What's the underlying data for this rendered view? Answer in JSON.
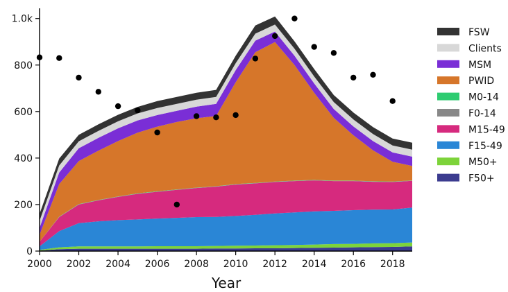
{
  "chart_data": {
    "type": "area",
    "stacked": true,
    "xlabel": "Year",
    "ylabel": "",
    "xlim": [
      2000,
      2019
    ],
    "ylim": [
      0,
      1020
    ],
    "x_ticks": [
      "2000",
      "2002",
      "2004",
      "2006",
      "2008",
      "2010",
      "2012",
      "2014",
      "2016",
      "2018"
    ],
    "y_ticks": [
      "0",
      "200",
      "400",
      "600",
      "800",
      "1.0k"
    ],
    "legend_position": "right",
    "x": [
      2000,
      2001,
      2002,
      2003,
      2004,
      2005,
      2006,
      2007,
      2008,
      2009,
      2010,
      2011,
      2012,
      2013,
      2014,
      2015,
      2016,
      2017,
      2018,
      2019
    ],
    "series": [
      {
        "name": "F50+",
        "color": "#3b3b8f",
        "values": [
          2,
          8,
          10,
          10,
          10,
          10,
          10,
          10,
          10,
          11,
          11,
          12,
          12,
          13,
          14,
          15,
          16,
          17,
          18,
          20
        ]
      },
      {
        "name": "M50+",
        "color": "#7dd33a",
        "values": [
          3,
          8,
          10,
          10,
          10,
          10,
          11,
          11,
          11,
          11,
          12,
          12,
          13,
          13,
          14,
          15,
          15,
          16,
          16,
          17
        ]
      },
      {
        "name": "F15-49",
        "color": "#2a86d6",
        "values": [
          15,
          70,
          100,
          108,
          113,
          116,
          119,
          122,
          125,
          125,
          128,
          132,
          137,
          140,
          143,
          143,
          145,
          145,
          145,
          150
        ]
      },
      {
        "name": "M15-49",
        "color": "#d62a7e",
        "values": [
          20,
          60,
          80,
          90,
          100,
          110,
          115,
          120,
          125,
          130,
          135,
          135,
          135,
          135,
          133,
          128,
          125,
          120,
          118,
          115
        ]
      },
      {
        "name": "F0-14",
        "color": "#888888",
        "values": [
          0,
          1,
          1,
          1,
          1,
          1,
          1,
          1,
          1,
          1,
          1,
          1,
          1,
          1,
          1,
          1,
          1,
          1,
          1,
          1
        ]
      },
      {
        "name": "M0-14",
        "color": "#2ecc71",
        "values": [
          0,
          1,
          1,
          1,
          1,
          1,
          1,
          1,
          1,
          1,
          1,
          1,
          1,
          1,
          1,
          1,
          1,
          1,
          1,
          1
        ]
      },
      {
        "name": "PWID",
        "color": "#d6762a",
        "values": [
          30,
          140,
          185,
          212,
          238,
          261,
          278,
          290,
          298,
          302,
          438,
          562,
          600,
          497,
          375,
          270,
          195,
          133,
          85,
          62
        ]
      },
      {
        "name": "MSM",
        "color": "#7a2ed6",
        "values": [
          30,
          50,
          55,
          55,
          55,
          53,
          50,
          48,
          50,
          52,
          52,
          50,
          45,
          40,
          40,
          38,
          38,
          40,
          40,
          40
        ]
      },
      {
        "name": "Clients",
        "color": "#d8d8d8",
        "values": [
          30,
          30,
          30,
          30,
          30,
          30,
          30,
          30,
          30,
          30,
          30,
          30,
          30,
          30,
          30,
          30,
          30,
          30,
          30,
          30
        ]
      },
      {
        "name": "FSW",
        "color": "#333333",
        "values": [
          30,
          30,
          28,
          28,
          28,
          28,
          30,
          30,
          30,
          30,
          32,
          35,
          35,
          32,
          32,
          30,
          30,
          30,
          30,
          30
        ]
      }
    ],
    "scatter_points": [
      [
        2000,
        833
      ],
      [
        2001,
        830
      ],
      [
        2002,
        746
      ],
      [
        2003,
        685
      ],
      [
        2004,
        623
      ],
      [
        2005,
        605
      ],
      [
        2006,
        510
      ],
      [
        2007,
        200
      ],
      [
        2008,
        580
      ],
      [
        2009,
        575
      ],
      [
        2010,
        585
      ],
      [
        2011,
        828
      ],
      [
        2012,
        925
      ],
      [
        2013,
        1000
      ],
      [
        2014,
        878
      ],
      [
        2015,
        852
      ],
      [
        2016,
        746
      ],
      [
        2017,
        758
      ],
      [
        2018,
        645
      ]
    ]
  }
}
